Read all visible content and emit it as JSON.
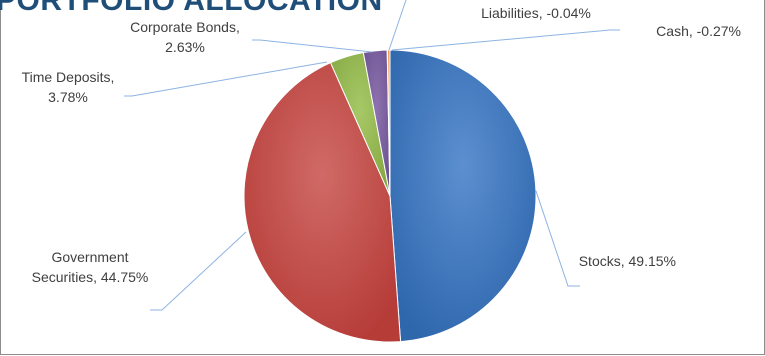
{
  "chart_data": {
    "type": "pie",
    "title": "PORTFOLIO ALLOCATION",
    "slices": [
      {
        "name": "Stocks",
        "value": 49.15,
        "label": "Stocks, 49.15%",
        "color": "#4f81bd"
      },
      {
        "name": "Government Securities",
        "value": 44.75,
        "label_lines": [
          "Government",
          "Securities, 44.75%"
        ],
        "color": "#c0504d"
      },
      {
        "name": "Time Deposits",
        "value": 3.78,
        "label_lines": [
          "Time Deposits,",
          "3.78%"
        ],
        "color": "#9bbb59"
      },
      {
        "name": "Corporate Bonds",
        "value": 2.63,
        "label_lines": [
          "Corporate Bonds,",
          "2.63%"
        ],
        "color": "#8064a2"
      },
      {
        "name": "Liabilities",
        "value": -0.04,
        "label": "Liabilities, -0.04%",
        "color": "#4bacc6"
      },
      {
        "name": "Cash",
        "value": -0.27,
        "label": "Cash, -0.27%",
        "color": "#f79646"
      }
    ],
    "legend": false
  }
}
